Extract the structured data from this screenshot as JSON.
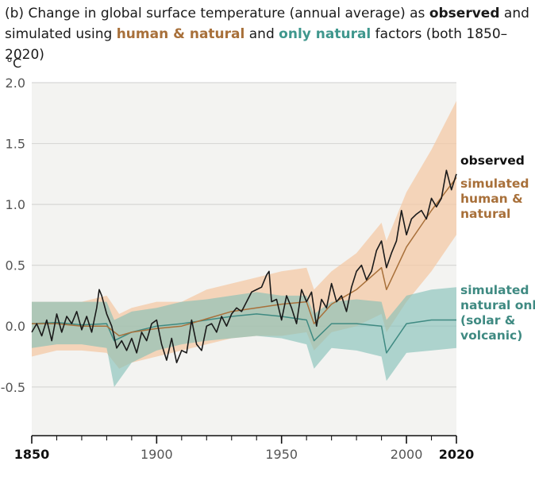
{
  "title": {
    "prefix": "(b) Change in global surface temperature (annual average) as ",
    "observed": "observed",
    "and1": " and simulated using ",
    "human_natural": "human & natural",
    "and2": " and ",
    "only_natural": "only natural",
    "suffix": " factors (both 1850–2020)"
  },
  "colors": {
    "observed": "#1a1a1a",
    "human_natural_line": "#a8703a",
    "human_natural_band": "#f4c9a6",
    "natural_line": "#3f8a82",
    "natural_band": "#7fbeb6",
    "plot_background": "#f3f3f1"
  },
  "chart_data": {
    "type": "line",
    "ylabel": "°C",
    "xlim": [
      1850,
      2020
    ],
    "ylim": [
      -0.9,
      2.0
    ],
    "y_ticks": [
      2.0,
      1.5,
      1.0,
      0.5,
      0.0,
      -0.5
    ],
    "y_tick_labels": [
      "2.0",
      "1.5",
      "1.0",
      "0.5",
      "0.0",
      "-0.5"
    ],
    "x_ticks": [
      1850,
      1900,
      1950,
      2000,
      2020
    ],
    "x_tick_labels": [
      "1850",
      "1900",
      "1950",
      "2000",
      "2020"
    ],
    "x_tick_bold": [
      true,
      false,
      false,
      false,
      true
    ],
    "grid": "horizontal",
    "series": [
      {
        "name": "observed",
        "label_lines": [
          "observed"
        ],
        "x": [
          1850,
          1852,
          1854,
          1856,
          1858,
          1860,
          1862,
          1864,
          1866,
          1868,
          1870,
          1872,
          1874,
          1876,
          1877,
          1878,
          1880,
          1882,
          1884,
          1886,
          1888,
          1890,
          1892,
          1894,
          1896,
          1898,
          1900,
          1902,
          1904,
          1906,
          1908,
          1910,
          1912,
          1914,
          1916,
          1918,
          1920,
          1922,
          1924,
          1926,
          1928,
          1930,
          1932,
          1934,
          1936,
          1938,
          1940,
          1942,
          1944,
          1945,
          1946,
          1948,
          1950,
          1952,
          1954,
          1956,
          1958,
          1960,
          1962,
          1964,
          1966,
          1968,
          1970,
          1972,
          1974,
          1976,
          1978,
          1980,
          1982,
          1984,
          1986,
          1988,
          1990,
          1992,
          1994,
          1996,
          1998,
          2000,
          2002,
          2004,
          2006,
          2008,
          2010,
          2012,
          2014,
          2016,
          2018,
          2020
        ],
        "values": [
          -0.05,
          0.02,
          -0.08,
          0.05,
          -0.12,
          0.1,
          -0.05,
          0.08,
          0.02,
          0.12,
          -0.03,
          0.08,
          -0.05,
          0.15,
          0.3,
          0.25,
          0.1,
          0.0,
          -0.18,
          -0.12,
          -0.2,
          -0.1,
          -0.22,
          -0.05,
          -0.12,
          0.02,
          0.05,
          -0.15,
          -0.28,
          -0.1,
          -0.3,
          -0.2,
          -0.22,
          0.05,
          -0.15,
          -0.2,
          0.0,
          0.02,
          -0.05,
          0.08,
          0.0,
          0.1,
          0.15,
          0.12,
          0.2,
          0.28,
          0.3,
          0.32,
          0.42,
          0.45,
          0.2,
          0.22,
          0.05,
          0.25,
          0.15,
          0.02,
          0.3,
          0.2,
          0.28,
          0.0,
          0.22,
          0.15,
          0.35,
          0.2,
          0.25,
          0.12,
          0.32,
          0.45,
          0.5,
          0.38,
          0.45,
          0.62,
          0.7,
          0.48,
          0.6,
          0.7,
          0.95,
          0.75,
          0.88,
          0.92,
          0.95,
          0.88,
          1.05,
          0.98,
          1.05,
          1.28,
          1.12,
          1.25
        ]
      },
      {
        "name": "simulated human & natural",
        "label_lines": [
          "simulated",
          "human &",
          "natural"
        ],
        "x": [
          1850,
          1860,
          1870,
          1880,
          1885,
          1890,
          1900,
          1910,
          1920,
          1930,
          1940,
          1950,
          1960,
          1963,
          1970,
          1980,
          1990,
          1992,
          2000,
          2010,
          2020
        ],
        "values": [
          0.02,
          0.02,
          0.0,
          0.0,
          -0.08,
          -0.05,
          -0.02,
          0.0,
          0.06,
          0.12,
          0.15,
          0.18,
          0.2,
          0.02,
          0.18,
          0.3,
          0.48,
          0.3,
          0.65,
          0.95,
          1.22
        ],
        "band_upper": [
          0.2,
          0.2,
          0.2,
          0.25,
          0.1,
          0.15,
          0.2,
          0.2,
          0.3,
          0.35,
          0.4,
          0.45,
          0.48,
          0.3,
          0.45,
          0.6,
          0.85,
          0.7,
          1.1,
          1.45,
          1.85
        ],
        "band_lower": [
          -0.25,
          -0.2,
          -0.2,
          -0.22,
          -0.35,
          -0.3,
          -0.25,
          -0.2,
          -0.15,
          -0.1,
          -0.08,
          -0.08,
          -0.05,
          -0.2,
          -0.05,
          0.0,
          0.1,
          -0.05,
          0.2,
          0.45,
          0.75
        ]
      },
      {
        "name": "simulated natural only (solar & volcanic)",
        "label_lines": [
          "simulated",
          "natural only",
          "(solar &",
          "volcanic)"
        ],
        "x": [
          1850,
          1860,
          1870,
          1880,
          1883,
          1890,
          1900,
          1910,
          1920,
          1930,
          1940,
          1950,
          1960,
          1963,
          1970,
          1980,
          1990,
          1992,
          2000,
          2010,
          2020
        ],
        "values": [
          0.02,
          0.03,
          0.01,
          0.02,
          -0.12,
          -0.05,
          0.0,
          0.02,
          0.05,
          0.08,
          0.1,
          0.08,
          0.05,
          -0.12,
          0.02,
          0.02,
          0.0,
          -0.22,
          0.02,
          0.05,
          0.05
        ],
        "band_upper": [
          0.2,
          0.2,
          0.2,
          0.2,
          0.05,
          0.12,
          0.15,
          0.2,
          0.22,
          0.25,
          0.28,
          0.25,
          0.25,
          0.1,
          0.2,
          0.22,
          0.2,
          0.05,
          0.25,
          0.3,
          0.32
        ],
        "band_lower": [
          -0.18,
          -0.15,
          -0.15,
          -0.18,
          -0.5,
          -0.3,
          -0.2,
          -0.15,
          -0.12,
          -0.1,
          -0.08,
          -0.1,
          -0.15,
          -0.35,
          -0.18,
          -0.2,
          -0.25,
          -0.45,
          -0.22,
          -0.2,
          -0.18
        ]
      }
    ]
  }
}
